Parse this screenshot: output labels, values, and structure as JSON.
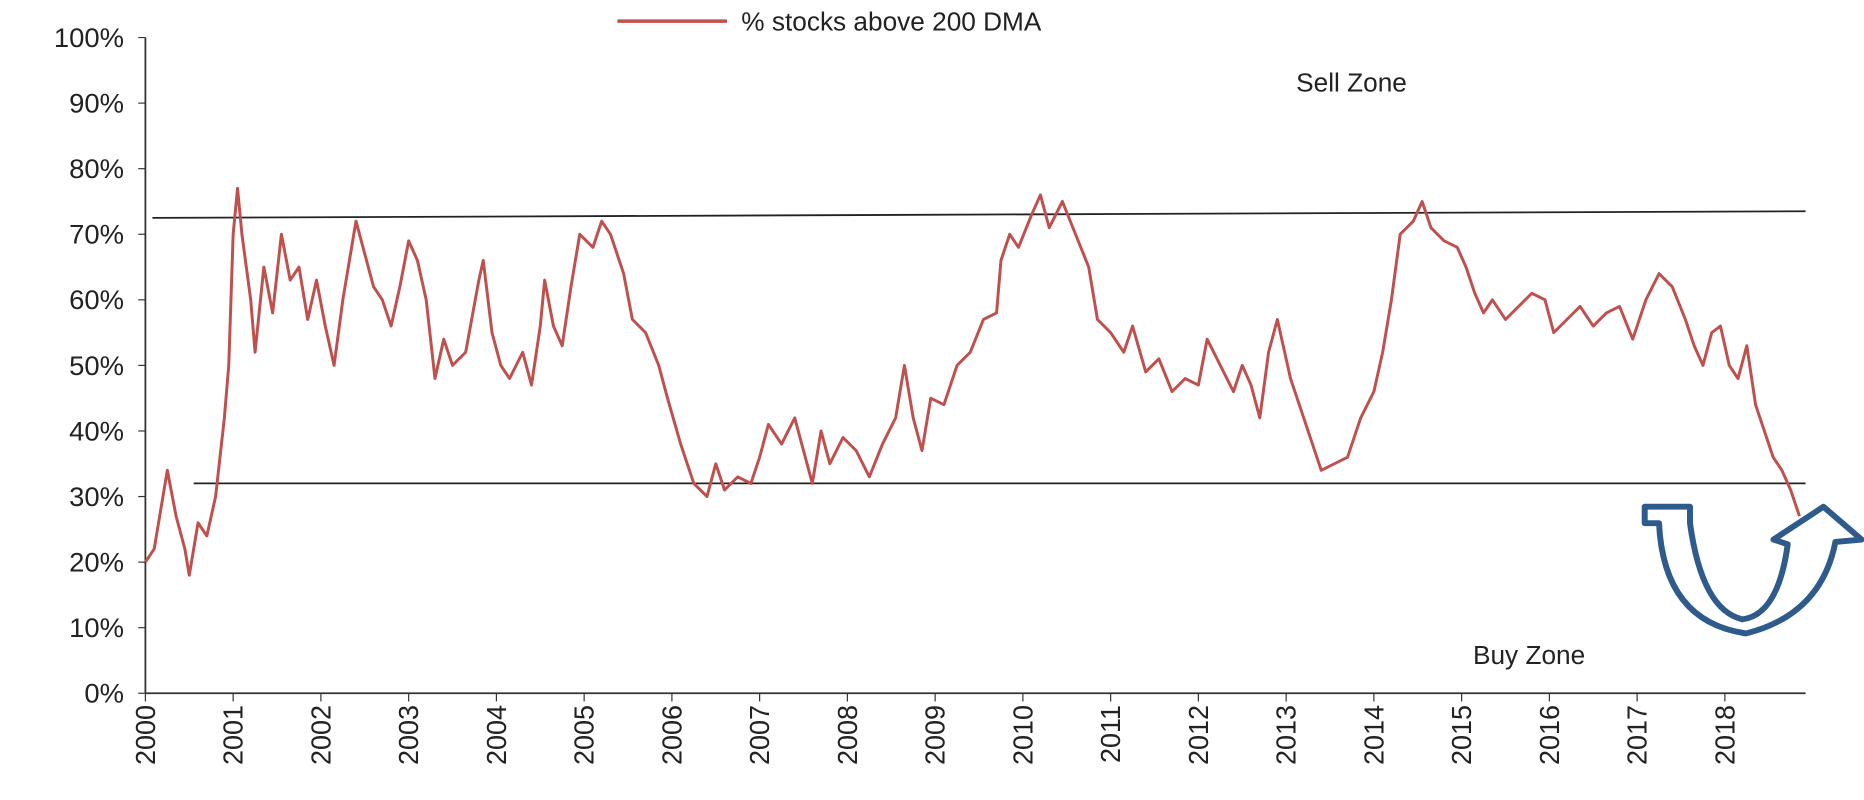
{
  "chart_data": {
    "type": "line",
    "legend": "top",
    "annotations": [
      "Sell Zone",
      "Buy Zone"
    ],
    "xlim": [
      2000,
      2018.92
    ],
    "xticks": [
      2000,
      2001,
      2002,
      2003,
      2004,
      2005,
      2006,
      2007,
      2008,
      2009,
      2010,
      2011,
      2012,
      2013,
      2014,
      2015,
      2016,
      2017,
      2018
    ],
    "ylim": [
      0,
      100
    ],
    "yticks": [
      {
        "value": 0,
        "label": "0%"
      },
      {
        "value": 10,
        "label": "10%"
      },
      {
        "value": 20,
        "label": "20%"
      },
      {
        "value": 30,
        "label": "30%"
      },
      {
        "value": 40,
        "label": "40%"
      },
      {
        "value": 50,
        "label": "50%"
      },
      {
        "value": 60,
        "label": "60%"
      },
      {
        "value": 70,
        "label": "70%"
      },
      {
        "value": 80,
        "label": "80%"
      },
      {
        "value": 90,
        "label": "90%"
      },
      {
        "value": 100,
        "label": "100%"
      }
    ],
    "reference_lines": [
      {
        "x": [
          2000.08,
          2018.92
        ],
        "y": [
          72.5,
          73.5
        ],
        "color": "#222222"
      },
      {
        "x": [
          2000.55,
          2018.92
        ],
        "y": [
          32,
          32
        ],
        "color": "#222222"
      }
    ],
    "x": [
      2000.0,
      2000.1,
      2000.2,
      2000.25,
      2000.35,
      2000.45,
      2000.5,
      2000.6,
      2000.7,
      2000.8,
      2000.9,
      2000.95,
      2001.0,
      2001.05,
      2001.1,
      2001.2,
      2001.25,
      2001.35,
      2001.45,
      2001.55,
      2001.65,
      2001.75,
      2001.85,
      2001.95,
      2002.05,
      2002.15,
      2002.25,
      2002.4,
      2002.5,
      2002.6,
      2002.7,
      2002.8,
      2002.9,
      2003.0,
      2003.1,
      2003.2,
      2003.3,
      2003.4,
      2003.5,
      2003.65,
      2003.8,
      2003.85,
      2003.95,
      2004.05,
      2004.15,
      2004.3,
      2004.4,
      2004.5,
      2004.55,
      2004.65,
      2004.75,
      2004.85,
      2004.95,
      2005.1,
      2005.2,
      2005.3,
      2005.45,
      2005.55,
      2005.7,
      2005.85,
      2005.95,
      2006.1,
      2006.25,
      2006.4,
      2006.5,
      2006.6,
      2006.75,
      2006.9,
      2007.0,
      2007.1,
      2007.25,
      2007.4,
      2007.5,
      2007.6,
      2007.7,
      2007.8,
      2007.95,
      2008.1,
      2008.25,
      2008.4,
      2008.55,
      2008.65,
      2008.75,
      2008.85,
      2008.95,
      2009.1,
      2009.25,
      2009.4,
      2009.55,
      2009.7,
      2009.75,
      2009.85,
      2009.95,
      2010.1,
      2010.2,
      2010.3,
      2010.45,
      2010.6,
      2010.75,
      2010.85,
      2011.0,
      2011.15,
      2011.25,
      2011.4,
      2011.55,
      2011.7,
      2011.85,
      2012.0,
      2012.1,
      2012.25,
      2012.4,
      2012.5,
      2012.6,
      2012.7,
      2012.8,
      2012.9,
      2012.95,
      2013.05,
      2013.2,
      2013.3,
      2013.4,
      2013.55,
      2013.7,
      2013.85,
      2014.0,
      2014.1,
      2014.2,
      2014.3,
      2014.45,
      2014.55,
      2014.65,
      2014.8,
      2014.95,
      2015.05,
      2015.15,
      2015.25,
      2015.35,
      2015.5,
      2015.65,
      2015.8,
      2015.95,
      2016.05,
      2016.2,
      2016.35,
      2016.5,
      2016.65,
      2016.8,
      2016.95,
      2017.1,
      2017.25,
      2017.4,
      2017.55,
      2017.65,
      2017.75,
      2017.85,
      2017.95,
      2018.05,
      2018.15,
      2018.25,
      2018.35,
      2018.45,
      2018.55,
      2018.65,
      2018.75,
      2018.85
    ],
    "series": [
      {
        "name": "% stocks above 200 DMA",
        "color": "#c0504d",
        "values": [
          20,
          22,
          30,
          34,
          27,
          22,
          18,
          26,
          24,
          30,
          42,
          50,
          70,
          77,
          70,
          60,
          52,
          65,
          58,
          70,
          63,
          65,
          57,
          63,
          56,
          50,
          60,
          72,
          67,
          62,
          60,
          56,
          62,
          69,
          66,
          60,
          48,
          54,
          50,
          52,
          63,
          66,
          55,
          50,
          48,
          52,
          47,
          56,
          63,
          56,
          53,
          62,
          70,
          68,
          72,
          70,
          64,
          57,
          55,
          50,
          45,
          38,
          32,
          30,
          35,
          31,
          33,
          32,
          36,
          41,
          38,
          42,
          37,
          32,
          40,
          35,
          39,
          37,
          33,
          38,
          42,
          50,
          42,
          37,
          45,
          44,
          50,
          52,
          57,
          58,
          66,
          70,
          68,
          73,
          76,
          71,
          75,
          70,
          65,
          57,
          55,
          52,
          56,
          49,
          51,
          46,
          48,
          47,
          54,
          50,
          46,
          50,
          47,
          42,
          52,
          57,
          54,
          48,
          42,
          38,
          34,
          35,
          36,
          42,
          46,
          52,
          60,
          70,
          72,
          75,
          71,
          69,
          68,
          65,
          61,
          58,
          60,
          57,
          59,
          61,
          60,
          55,
          57,
          59,
          56,
          58,
          59,
          54,
          60,
          64,
          62,
          57,
          53,
          50,
          55,
          56,
          50,
          48,
          53,
          44,
          40,
          36,
          34,
          31,
          27
        ]
      }
    ]
  }
}
